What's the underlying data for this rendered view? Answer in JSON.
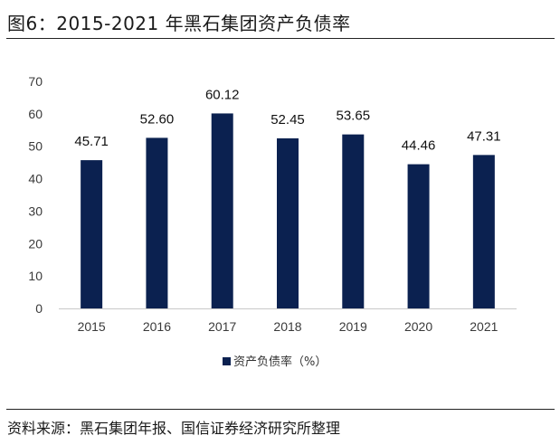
{
  "figure": {
    "title": "图6：2015-2021 年黑石集团资产负债率",
    "source": "资料来源：黑石集团年报、国信证券经济研究所整理"
  },
  "chart_data": {
    "type": "bar",
    "categories": [
      "2015",
      "2016",
      "2017",
      "2018",
      "2019",
      "2020",
      "2021"
    ],
    "series": [
      {
        "name": "资产负债率（%）",
        "values": [
          45.71,
          52.6,
          60.12,
          52.45,
          53.65,
          44.46,
          47.31
        ],
        "color": "#0b2150"
      }
    ],
    "data_labels": [
      "45.71",
      "52.60",
      "60.12",
      "52.45",
      "53.65",
      "44.46",
      "47.31"
    ],
    "ylim": [
      0,
      70
    ],
    "yticks": [
      "0",
      "10",
      "20",
      "30",
      "40",
      "50",
      "60",
      "70"
    ],
    "xlabel": "",
    "ylabel": "",
    "grid": false,
    "legend_position": "bottom"
  }
}
